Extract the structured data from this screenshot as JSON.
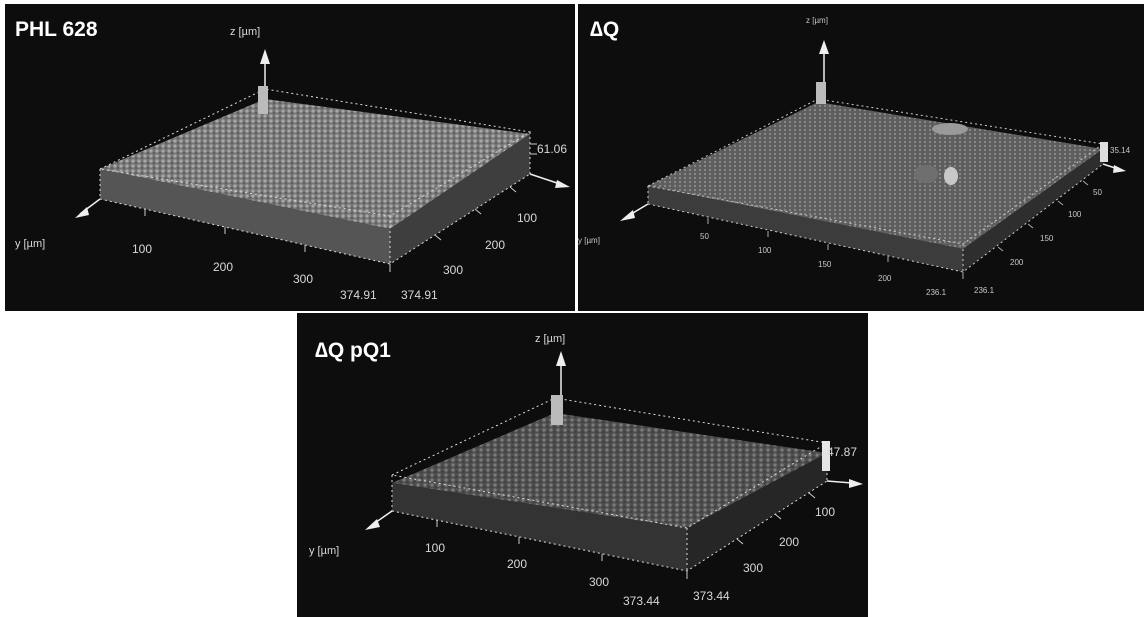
{
  "panels": [
    {
      "title": "PHL 628",
      "z_label": "z [µm]",
      "y_label": "y [µm]",
      "z_max": "61.06",
      "y_ticks": [
        "100",
        "200",
        "300",
        "374.91"
      ],
      "x_ticks": [
        "100",
        "200",
        "300",
        "374.91"
      ]
    },
    {
      "title": "∆Q",
      "z_label": "z [µm]",
      "y_label": "y [µm]",
      "z_max": "35.14",
      "y_ticks": [
        "50",
        "100",
        "150",
        "200",
        "236.1"
      ],
      "x_ticks": [
        "50",
        "100",
        "150",
        "200",
        "236.1"
      ]
    },
    {
      "title": "∆Q pQ1",
      "z_label": "z [µm]",
      "y_label": "y [µm]",
      "z_max": "47.87",
      "y_ticks": [
        "100",
        "200",
        "300",
        "373.44"
      ],
      "x_ticks": [
        "100",
        "200",
        "300",
        "373.44"
      ]
    }
  ],
  "colors": {
    "background": "#0d0d0d",
    "surface": "#8a8a8a",
    "axis": "#e6e6e6"
  }
}
